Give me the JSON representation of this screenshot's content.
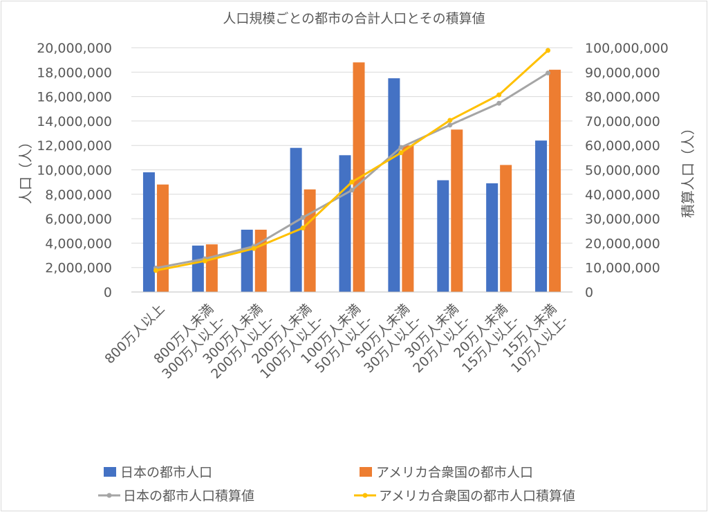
{
  "chart_data": {
    "type": "bar+line",
    "title": "人口規模ごとの都市の合計人口とその積算値",
    "ylabel": "人口（人）",
    "y2label": "積算人口（人）",
    "ylim": [
      0,
      20000000
    ],
    "y2lim": [
      0,
      100000000
    ],
    "yticks": [
      "0",
      "2,000,000",
      "4,000,000",
      "6,000,000",
      "8,000,000",
      "10,000,000",
      "12,000,000",
      "14,000,000",
      "16,000,000",
      "18,000,000",
      "20,000,000"
    ],
    "y2ticks": [
      "0",
      "10,000,000",
      "20,000,000",
      "30,000,000",
      "40,000,000",
      "50,000,000",
      "60,000,000",
      "70,000,000",
      "80,000,000",
      "90,000,000",
      "100,000,000"
    ],
    "grid": true,
    "legend_position": "bottom",
    "categories": [
      "800万人以上",
      "300万人以上- 800万人未満",
      "200万人以上- 300万人未満",
      "100万人以上- 200万人未満",
      "50万人以上- 100万人未満",
      "30万人以上- 50万人未満",
      "20万人以上- 30万人未満",
      "15万人以上- 20万人未満",
      "10万人以上- 15万人未満"
    ],
    "series": [
      {
        "name": "日本の都市人口",
        "type": "bar",
        "axis": "left",
        "color": "#4472c4",
        "values": [
          9800000,
          3800000,
          5100000,
          11800000,
          11200000,
          17500000,
          9150000,
          8900000,
          12400000
        ]
      },
      {
        "name": "アメリカ合衆国の都市人口",
        "type": "bar",
        "axis": "left",
        "color": "#ed7d31",
        "values": [
          8800000,
          3900000,
          5100000,
          8400000,
          18800000,
          12000000,
          13300000,
          10400000,
          18200000
        ]
      },
      {
        "name": "日本の都市人口積算値",
        "type": "line",
        "axis": "right",
        "color": "#a5a5a5",
        "values": [
          9800000,
          13600000,
          18700000,
          30500000,
          41700000,
          59200000,
          68350000,
          77250000,
          89650000
        ]
      },
      {
        "name": "アメリカ合衆国の都市人口積算値",
        "type": "line",
        "axis": "right",
        "color": "#ffc000",
        "values": [
          8800000,
          12700000,
          17800000,
          26200000,
          45000000,
          57000000,
          70300000,
          80700000,
          98900000
        ]
      }
    ]
  }
}
